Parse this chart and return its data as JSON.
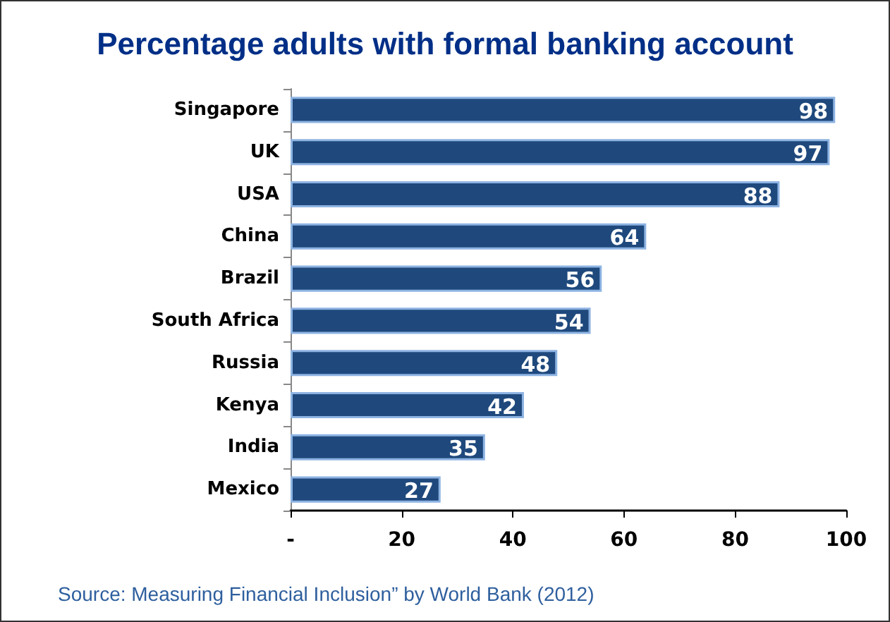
{
  "chart_data": {
    "type": "bar",
    "orientation": "horizontal",
    "title": "Percentage adults with formal banking account",
    "categories": [
      "Singapore",
      "UK",
      "USA",
      "China",
      "Brazil",
      "South Africa",
      "Russia",
      "Kenya",
      "India",
      "Mexico"
    ],
    "values": [
      98,
      97,
      88,
      64,
      56,
      54,
      48,
      42,
      35,
      27
    ],
    "color": "#1f497d",
    "data_labels": true,
    "xlim": [
      0,
      100
    ],
    "xticks": [
      {
        "value": 0,
        "label": "-"
      },
      20,
      40,
      60,
      80,
      100
    ],
    "grid": false,
    "annotations": [
      "Source: Measuring Financial Inclusion” by World Bank (2012)"
    ]
  }
}
